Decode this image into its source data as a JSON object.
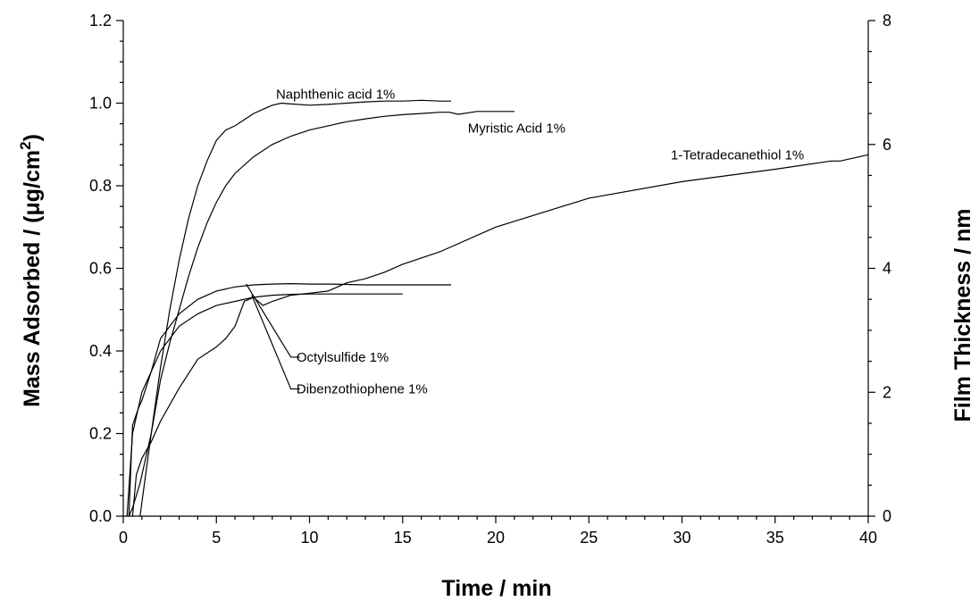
{
  "chart_data": {
    "type": "line",
    "xlabel": "Time / min",
    "ylabel": "Mass Adsorbed / (μg/cm",
    "ylabel_sup": "2",
    "ylabel_end": ")",
    "y2label": "Film Thickness / nm",
    "xlim": [
      0,
      40
    ],
    "ylim": [
      0,
      1.2
    ],
    "y2lim": [
      0,
      8
    ],
    "x_ticks": [
      0,
      5,
      10,
      15,
      20,
      25,
      30,
      35,
      40
    ],
    "y_ticks": [
      0.0,
      0.2,
      0.4,
      0.6,
      0.8,
      1.0,
      1.2
    ],
    "y2_ticks": [
      0,
      2,
      4,
      6,
      8
    ],
    "x_tick_labels": [
      "0",
      "5",
      "10",
      "15",
      "20",
      "25",
      "30",
      "35",
      "40"
    ],
    "y_tick_labels": [
      "0.0",
      "0.2",
      "0.4",
      "0.6",
      "0.8",
      "1.0",
      "1.2"
    ],
    "y2_tick_labels": [
      "0",
      "2",
      "4",
      "6",
      "8"
    ],
    "grid": false,
    "series": [
      {
        "name": "Naphthenic acid 1%",
        "x": [
          0.3,
          0.5,
          0.9,
          1.5,
          2.0,
          2.5,
          3.0,
          3.5,
          4.0,
          4.5,
          5.0,
          5.5,
          6.0,
          6.5,
          7.0,
          7.5,
          8.0,
          8.5,
          9.0,
          10.0,
          11.0,
          12.0,
          13.0,
          14.0,
          15.0,
          16.0,
          17.0,
          17.6
        ],
        "y": [
          0.0,
          0.02,
          0.08,
          0.2,
          0.36,
          0.5,
          0.62,
          0.72,
          0.8,
          0.86,
          0.91,
          0.935,
          0.945,
          0.96,
          0.975,
          0.985,
          0.995,
          1.0,
          0.998,
          0.995,
          0.997,
          1.0,
          1.003,
          1.005,
          1.005,
          1.007,
          1.005,
          1.005
        ]
      },
      {
        "name": "Myristic Acid 1%",
        "x": [
          0.9,
          1.2,
          1.5,
          2.0,
          2.5,
          3.0,
          3.5,
          4.0,
          4.5,
          5.0,
          5.5,
          6.0,
          7.0,
          8.0,
          9.0,
          10.0,
          11.0,
          12.0,
          13.0,
          14.0,
          15.0,
          16.0,
          17.0,
          17.5,
          18.0,
          19.0,
          20.0,
          21.0
        ],
        "y": [
          0.0,
          0.1,
          0.2,
          0.33,
          0.42,
          0.5,
          0.58,
          0.65,
          0.71,
          0.76,
          0.8,
          0.83,
          0.87,
          0.9,
          0.92,
          0.935,
          0.945,
          0.955,
          0.962,
          0.968,
          0.972,
          0.975,
          0.978,
          0.978,
          0.973,
          0.98,
          0.98,
          0.98
        ]
      },
      {
        "name": "1-Tetradecanethiol 1%",
        "x": [
          0.5,
          0.7,
          1.0,
          1.5,
          2.0,
          3.0,
          4.0,
          5.0,
          5.5,
          6.0,
          6.5,
          7.0,
          7.5,
          8.0,
          9.0,
          10.0,
          11.0,
          12.0,
          13.0,
          14.0,
          15.0,
          17.0,
          20.0,
          25.0,
          30.0,
          35.0,
          38.0,
          38.5,
          40.0
        ],
        "y": [
          0.0,
          0.1,
          0.14,
          0.18,
          0.23,
          0.31,
          0.38,
          0.41,
          0.43,
          0.46,
          0.52,
          0.53,
          0.51,
          0.52,
          0.535,
          0.54,
          0.545,
          0.565,
          0.575,
          0.59,
          0.61,
          0.64,
          0.7,
          0.77,
          0.81,
          0.84,
          0.86,
          0.86,
          0.875
        ]
      },
      {
        "name": "Octylsulfide 1%",
        "x": [
          0.3,
          0.5,
          0.8,
          1.0,
          1.5,
          2.0,
          3.0,
          4.0,
          5.0,
          6.0,
          7.0,
          8.0,
          9.0,
          10.0,
          11.0,
          12.0,
          13.0,
          14.0,
          15.0,
          16.0,
          17.0,
          17.6
        ],
        "y": [
          0.0,
          0.22,
          0.26,
          0.28,
          0.35,
          0.43,
          0.49,
          0.525,
          0.545,
          0.555,
          0.56,
          0.562,
          0.563,
          0.562,
          0.562,
          0.561,
          0.56,
          0.56,
          0.56,
          0.56,
          0.56,
          0.56
        ]
      },
      {
        "name": "Dibenzothiophene 1%",
        "x": [
          0.2,
          0.5,
          1.0,
          1.5,
          2.0,
          3.0,
          4.0,
          5.0,
          6.0,
          7.0,
          8.0,
          9.0,
          10.0,
          11.0,
          12.0,
          13.0,
          14.0,
          15.0
        ],
        "y": [
          0.0,
          0.2,
          0.3,
          0.35,
          0.4,
          0.46,
          0.49,
          0.51,
          0.52,
          0.53,
          0.535,
          0.537,
          0.538,
          0.538,
          0.538,
          0.538,
          0.538,
          0.538
        ]
      }
    ],
    "annotations": [
      {
        "text": "Naphthenic acid 1%",
        "x": 8.2,
        "y": 1.022,
        "anchor": "start"
      },
      {
        "text": "Myristic Acid 1%",
        "x": 18.5,
        "y": 0.94,
        "anchor": "start"
      },
      {
        "text": "1-Tetradecanethiol 1%",
        "x": 29.4,
        "y": 0.875,
        "anchor": "start"
      },
      {
        "text": "Octylsulfide 1%",
        "x": 9.3,
        "y": 0.385,
        "anchor": "start",
        "leader_from": [
          6.6,
          0.562
        ],
        "leader_to": [
          9.0,
          0.385
        ]
      },
      {
        "text": "Dibenzothiophene 1%",
        "x": 9.3,
        "y": 0.308,
        "anchor": "start",
        "leader_from": [
          6.9,
          0.535
        ],
        "leader_to": [
          9.0,
          0.308
        ]
      }
    ]
  }
}
